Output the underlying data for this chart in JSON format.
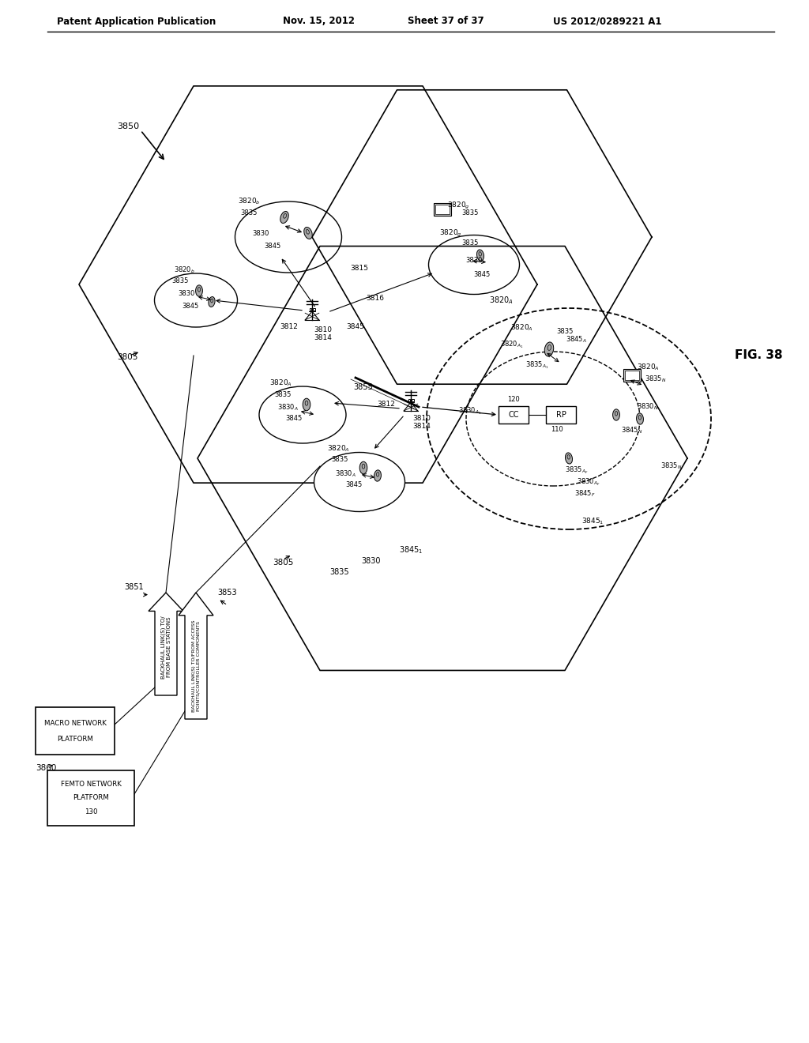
{
  "background_color": "#ffffff",
  "header_text": "Patent Application Publication",
  "header_date": "Nov. 15, 2012",
  "header_sheet": "Sheet 37 of 37",
  "header_number": "US 2012/0289221 A1",
  "fig_label": "FIG. 38"
}
